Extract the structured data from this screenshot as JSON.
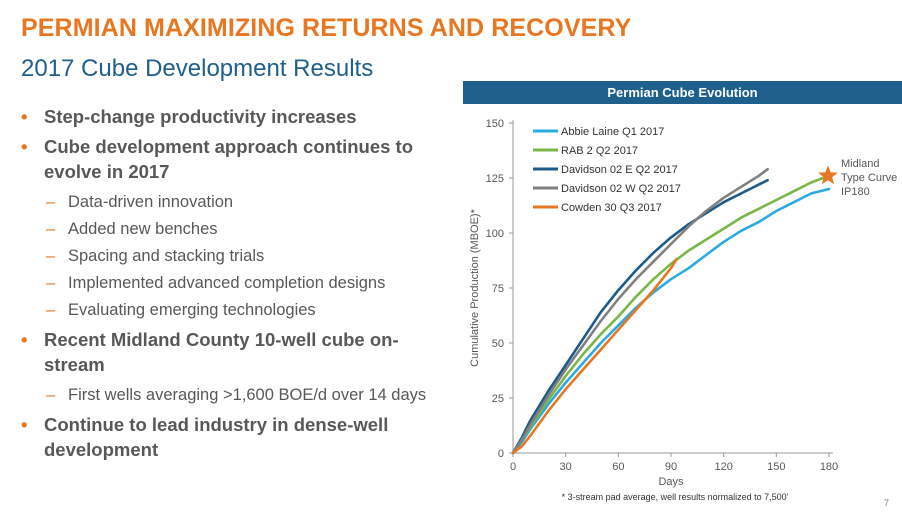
{
  "header": {
    "title": "PERMIAN MAXIMIZING RETURNS AND RECOVERY",
    "subtitle": "2017 Cube Development Results"
  },
  "bullets": [
    {
      "text": "Step-change productivity increases",
      "sub": []
    },
    {
      "text": "Cube development approach continues to evolve in 2017",
      "sub": [
        "Data-driven innovation",
        "Added new benches",
        "Spacing and stacking trials",
        "Implemented advanced completion designs",
        "Evaluating emerging technologies"
      ]
    },
    {
      "text": "Recent Midland County 10-well cube on-stream",
      "sub": [
        "First wells averaging >1,600 BOE/d over 14 days"
      ]
    },
    {
      "text": "Continue to lead industry in dense-well development",
      "sub": []
    }
  ],
  "page_number": "7",
  "chart_data": {
    "type": "line",
    "title": "Permian Cube Evolution",
    "xlabel": "Days",
    "ylabel": "Cumulative Production (MBOE)*",
    "xlim": [
      0,
      180
    ],
    "ylim": [
      0,
      150
    ],
    "xticks": [
      0,
      30,
      60,
      90,
      120,
      150,
      180
    ],
    "yticks": [
      0,
      25,
      50,
      75,
      100,
      125,
      150
    ],
    "footnote": "* 3-stream pad average, well results normalized to 7,500'",
    "series": [
      {
        "name": "Abbie Laine Q1 2017",
        "color": "#29abe2",
        "x": [
          0,
          5,
          10,
          20,
          30,
          40,
          50,
          60,
          70,
          80,
          90,
          100,
          110,
          120,
          130,
          140,
          150,
          160,
          170,
          180
        ],
        "y": [
          0,
          5,
          11,
          22,
          32,
          41,
          50,
          58,
          66,
          73,
          79,
          84,
          90,
          96,
          101,
          105,
          110,
          114,
          118,
          120
        ]
      },
      {
        "name": "RAB 2 Q2 2017",
        "color": "#7ab648",
        "x": [
          0,
          5,
          10,
          20,
          30,
          40,
          50,
          60,
          70,
          80,
          90,
          100,
          110,
          120,
          130,
          140,
          150,
          160,
          170,
          180
        ],
        "y": [
          0,
          6,
          12,
          24,
          35,
          45,
          54,
          62,
          71,
          79,
          86,
          92,
          97,
          102,
          107,
          111,
          115,
          119,
          123,
          126
        ]
      },
      {
        "name": "Davidson 02 E Q2 2017",
        "color": "#1d5b8a",
        "x": [
          0,
          5,
          10,
          20,
          30,
          40,
          50,
          60,
          70,
          80,
          90,
          100,
          110,
          120,
          130,
          140,
          145
        ],
        "y": [
          0,
          7,
          15,
          28,
          40,
          52,
          64,
          74,
          83,
          91,
          98,
          104,
          109,
          114,
          118,
          122,
          124
        ]
      },
      {
        "name": "Davidson 02 W Q2 2017",
        "color": "#808080",
        "x": [
          0,
          5,
          10,
          20,
          30,
          40,
          50,
          60,
          70,
          80,
          90,
          100,
          110,
          120,
          130,
          140,
          145
        ],
        "y": [
          0,
          6,
          13,
          26,
          38,
          49,
          60,
          70,
          79,
          87,
          95,
          103,
          110,
          116,
          121,
          126,
          129
        ]
      },
      {
        "name": "Cowden 30 Q3 2017",
        "color": "#e87722",
        "x": [
          0,
          5,
          10,
          20,
          30,
          40,
          50,
          60,
          70,
          80,
          90,
          93
        ],
        "y": [
          0,
          3,
          8,
          19,
          29,
          38,
          47,
          56,
          65,
          74,
          84,
          88
        ]
      }
    ],
    "type_curve": {
      "label_lines": [
        "Midland",
        "Type Curve",
        "IP180"
      ],
      "x": 180,
      "y": 126,
      "color": "#e87722"
    }
  }
}
